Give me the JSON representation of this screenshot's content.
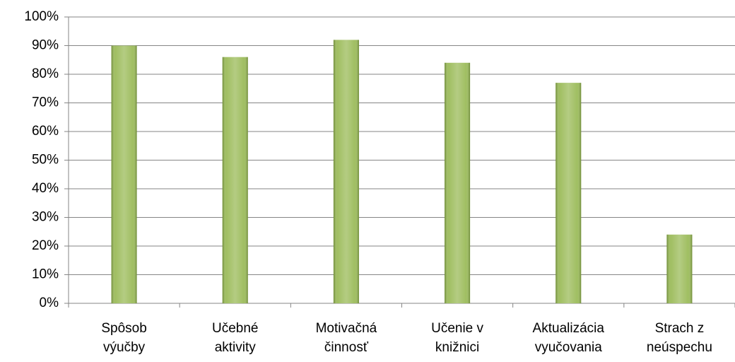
{
  "chart_data": {
    "type": "bar",
    "categories": [
      "Spôsob výučby",
      "Učebné aktivity",
      "Motivačná činnosť",
      "Učenie v knižnici",
      "Aktualizácia vyučovania",
      "Strach z neúspechu"
    ],
    "values": [
      90,
      86,
      92,
      84,
      77,
      24
    ],
    "color": "#9bbb59",
    "ylim": [
      0,
      100
    ],
    "yticks": [
      {
        "value": 0,
        "label": "0%"
      },
      {
        "value": 10,
        "label": "10%"
      },
      {
        "value": 20,
        "label": "20%"
      },
      {
        "value": 30,
        "label": "30%"
      },
      {
        "value": 40,
        "label": "40%"
      },
      {
        "value": 50,
        "label": "50%"
      },
      {
        "value": 60,
        "label": "60%"
      },
      {
        "value": 70,
        "label": "70%"
      },
      {
        "value": 80,
        "label": "80%"
      },
      {
        "value": 90,
        "label": "90%"
      },
      {
        "value": 100,
        "label": "100%"
      }
    ],
    "grid": true
  }
}
